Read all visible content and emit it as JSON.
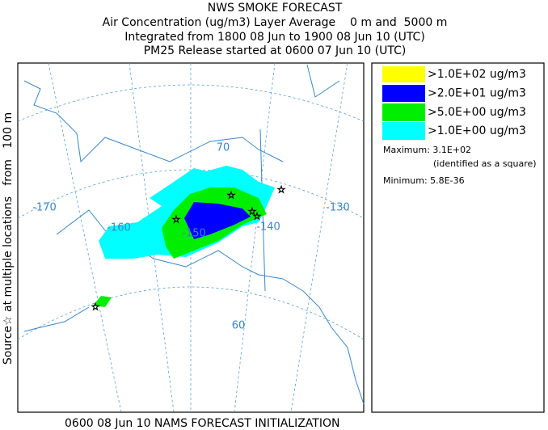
{
  "header": {
    "title": "NWS SMOKE FORECAST",
    "lines": [
      "Air Concentration (ug/m3) Layer Average    0 m and  5000 m",
      "Integrated from 1800 08 Jun to 1900 08 Jun 10 (UTC)",
      "PM25 Release started at 0600 07 Jun 10 (UTC)"
    ]
  },
  "side_label": "Source☆ at multiple locations   from   100 m",
  "map": {
    "labels": [
      "-170",
      "-160",
      "-150",
      "-140",
      "-130",
      "70",
      "60"
    ]
  },
  "legend": {
    "items": [
      {
        "label": ">1.0E+02 ug/m3",
        "color": "#ffff00"
      },
      {
        "label": ">2.0E+01 ug/m3",
        "color": "#0000ff"
      },
      {
        "label": ">5.0E+00 ug/m3",
        "color": "#00ee00"
      },
      {
        "label": ">1.0E+00 ug/m3",
        "color": "#00ffff"
      }
    ],
    "maximum": "Maximum: 3.1E+02",
    "maximum_note": "(identified as a square)",
    "minimum": "Minimum: 5.8E-36"
  },
  "footer": "0600 08 Jun 10 NAMS FORECAST INITIALIZATION"
}
